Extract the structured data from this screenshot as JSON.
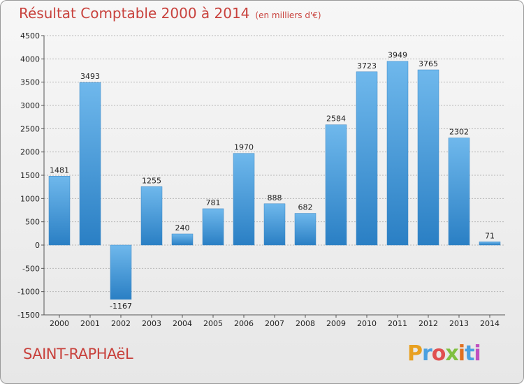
{
  "header": {
    "title": "Résultat Comptable 2000 à 2014",
    "subtitle": "(en milliers d'€)"
  },
  "footer": {
    "city": "SAINT-RAPHAëL",
    "brand_letters": [
      "P",
      "r",
      "o",
      "x",
      "i",
      "t",
      "i"
    ],
    "brand_colors": [
      "#e8a020",
      "#4aa0e0",
      "#e05050",
      "#80c040",
      "#e07020",
      "#4aa0e0",
      "#c050c0"
    ]
  },
  "colors": {
    "title": "#c8413c",
    "bar_light": "#6fb8ec",
    "bar_dark": "#2a7fc4",
    "grid": "#b8b8b8"
  },
  "chart_data": {
    "type": "bar",
    "title": "Résultat Comptable 2000 à 2014",
    "categories": [
      "2000",
      "2001",
      "2002",
      "2003",
      "2004",
      "2005",
      "2006",
      "2007",
      "2008",
      "2009",
      "2010",
      "2011",
      "2012",
      "2013",
      "2014"
    ],
    "values": [
      1481,
      3493,
      -1167,
      1255,
      240,
      781,
      1970,
      888,
      682,
      2584,
      3723,
      3949,
      3765,
      2302,
      71
    ],
    "labels": [
      "1481",
      "3493",
      "-1167",
      "1255",
      "240",
      "781",
      "1970",
      "888",
      "682",
      "2584",
      "3723",
      "3949",
      "3765",
      "2302",
      "71"
    ],
    "ylim": [
      -1500,
      4500
    ],
    "yticks": [
      -1500,
      -1000,
      -500,
      0,
      500,
      1000,
      1500,
      2000,
      2500,
      3000,
      3500,
      4000,
      4500
    ],
    "grid": true,
    "xlabel": "",
    "ylabel": ""
  }
}
